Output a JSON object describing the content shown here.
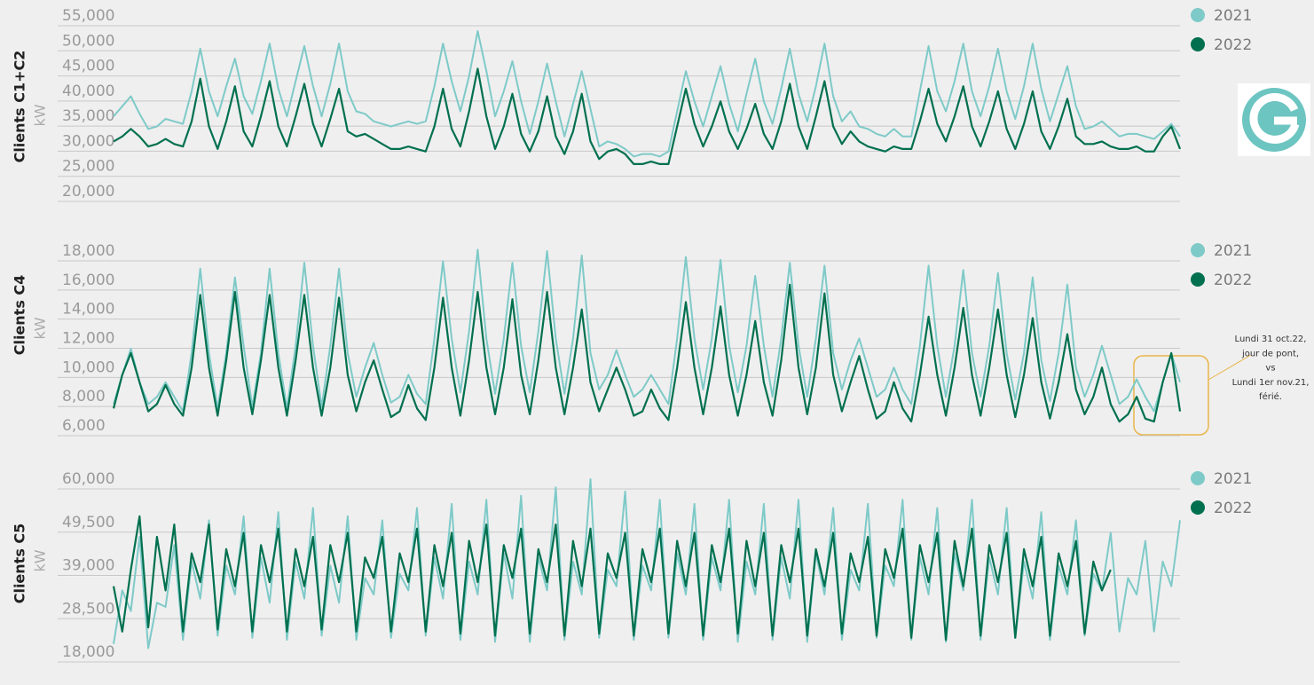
{
  "chart_data": [
    {
      "type": "line",
      "y_label": "Clients C1+C2",
      "unit_label": "kW",
      "grid": true,
      "legend": "right",
      "ylim": [
        20000,
        55000
      ],
      "yticks": [
        {
          "value": 20000,
          "label": "20,000"
        },
        {
          "value": 25000,
          "label": "25,000"
        },
        {
          "value": 30000,
          "label": "30,000"
        },
        {
          "value": 35000,
          "label": "35,000"
        },
        {
          "value": 40000,
          "label": "40,000"
        },
        {
          "value": 45000,
          "label": "45,000"
        },
        {
          "value": 50000,
          "label": "50,000"
        },
        {
          "value": 55000,
          "label": "55,000"
        }
      ],
      "series": [
        {
          "name": "2021",
          "color": "#7ecac8",
          "values": [
            35000,
            37000,
            39000,
            35500,
            32500,
            33000,
            34500,
            34000,
            33500,
            40000,
            48500,
            40000,
            35000,
            41000,
            46500,
            39000,
            35500,
            42000,
            49500,
            40500,
            35000,
            42000,
            49000,
            41000,
            35000,
            41500,
            49500,
            40000,
            36000,
            35500,
            34000,
            33500,
            33000,
            33500,
            34000,
            33500,
            34000,
            41000,
            49500,
            42000,
            36000,
            43000,
            52000,
            44000,
            35000,
            40000,
            46000,
            38000,
            31500,
            38000,
            45500,
            38000,
            31000,
            37500,
            44000,
            36500,
            29000,
            30000,
            29500,
            28500,
            27000,
            27500,
            27500,
            27000,
            28000,
            36000,
            44000,
            38000,
            33000,
            39000,
            45000,
            37500,
            32000,
            39500,
            46500,
            38000,
            33500,
            40500,
            48500,
            39500,
            34000,
            41000,
            49500,
            39000,
            34000,
            36000,
            33000,
            32500,
            31500,
            31000,
            32500,
            31000,
            31000,
            40000,
            49000,
            40000,
            36000,
            42000,
            49500,
            40000,
            35000,
            41000,
            48500,
            40000,
            34500,
            41000,
            49500,
            40500,
            34000,
            39500,
            45000,
            37000,
            32500,
            33000,
            34000,
            32500,
            31000,
            31500,
            31500,
            31000,
            30500,
            32000,
            33500,
            31000
          ]
        },
        {
          "name": "2022",
          "color": "#00704f",
          "values": [
            30000,
            31000,
            32500,
            31000,
            29000,
            29500,
            30500,
            29500,
            29000,
            34000,
            42500,
            33000,
            28500,
            34000,
            41000,
            32000,
            29000,
            35000,
            42000,
            33000,
            29000,
            35000,
            41500,
            33500,
            29000,
            34500,
            40500,
            32000,
            31000,
            31500,
            30500,
            29500,
            28500,
            28500,
            29000,
            28500,
            28000,
            33000,
            40500,
            32500,
            29000,
            36000,
            44500,
            35000,
            28500,
            33000,
            39500,
            31500,
            28000,
            32000,
            39000,
            31000,
            27500,
            32000,
            39500,
            30000,
            26500,
            28000,
            28500,
            27500,
            25500,
            25500,
            26000,
            25500,
            25500,
            33000,
            40500,
            33500,
            29000,
            33000,
            38000,
            32000,
            28500,
            32500,
            37500,
            31500,
            28500,
            34000,
            41500,
            33000,
            28500,
            35000,
            42000,
            33000,
            29500,
            32000,
            30000,
            29000,
            28500,
            28000,
            29000,
            28500,
            28500,
            34000,
            40500,
            33500,
            30000,
            35000,
            41000,
            33000,
            29000,
            34000,
            40000,
            32500,
            28500,
            33500,
            40000,
            32000,
            28500,
            33000,
            38500,
            31000,
            29500,
            29500,
            30000,
            29000,
            28500,
            28500,
            29000,
            28000,
            28000,
            31000,
            33000,
            28500
          ]
        }
      ]
    },
    {
      "type": "line",
      "y_label": "Clients C4",
      "unit_label": "kW",
      "grid": true,
      "legend": "right",
      "ylim": [
        6000,
        18000
      ],
      "yticks": [
        {
          "value": 6000,
          "label": "6,000"
        },
        {
          "value": 8000,
          "label": "8,000"
        },
        {
          "value": 10000,
          "label": "10,000"
        },
        {
          "value": 12000,
          "label": "12,000"
        },
        {
          "value": 14000,
          "label": "14,000"
        },
        {
          "value": 16000,
          "label": "16,000"
        },
        {
          "value": 18000,
          "label": "18,000"
        }
      ],
      "annotation": [
        "Lundi 31 oct.22,",
        "jour de pont,",
        "vs",
        "Lundi 1er nov.21,",
        "férié."
      ],
      "series": [
        {
          "name": "2021",
          "color": "#7ecac8",
          "values": [
            7500,
            9500,
            11300,
            9000,
            7500,
            8000,
            9000,
            8000,
            7000,
            11000,
            16800,
            11000,
            7200,
            11000,
            16200,
            11500,
            7300,
            11000,
            16800,
            11000,
            7200,
            11500,
            17200,
            11500,
            7300,
            11500,
            16800,
            11000,
            8000,
            10000,
            11700,
            9500,
            7600,
            8000,
            9500,
            8200,
            7500,
            12000,
            17300,
            12000,
            8300,
            12500,
            18100,
            12000,
            8200,
            12000,
            17200,
            11500,
            8300,
            12500,
            18000,
            12000,
            8200,
            12000,
            17700,
            11000,
            8500,
            9500,
            11200,
            9500,
            8000,
            8500,
            9500,
            8500,
            7500,
            12000,
            17600,
            12000,
            8500,
            12000,
            17400,
            11500,
            8300,
            11500,
            16300,
            11500,
            8000,
            12000,
            17200,
            11500,
            8000,
            12000,
            17000,
            11000,
            8500,
            10500,
            12000,
            10000,
            8000,
            8500,
            10000,
            8500,
            7500,
            11500,
            17000,
            11500,
            8000,
            11500,
            16700,
            11000,
            8000,
            11500,
            16500,
            11000,
            7800,
            11000,
            16200,
            10500,
            7700,
            11000,
            15700,
            10000,
            8000,
            9500,
            11500,
            9500,
            7500,
            8000,
            9200,
            8000,
            7000,
            9000,
            11000,
            9000
          ]
        },
        {
          "name": "2022",
          "color": "#00704f",
          "values": [
            7200,
            9500,
            11000,
            9000,
            7000,
            7500,
            8800,
            7500,
            6700,
            10000,
            15000,
            10000,
            6700,
            10500,
            15200,
            10000,
            6800,
            10500,
            15000,
            10000,
            6700,
            10500,
            15000,
            10000,
            6700,
            10000,
            14800,
            9500,
            7000,
            9000,
            10500,
            8500,
            6600,
            7000,
            8800,
            7200,
            6400,
            10000,
            14800,
            10000,
            6700,
            10500,
            15200,
            10000,
            6800,
            10000,
            14700,
            9500,
            6800,
            10500,
            15200,
            10000,
            6800,
            10000,
            14000,
            9000,
            7000,
            8500,
            10000,
            8500,
            6700,
            7000,
            8500,
            7200,
            6400,
            10000,
            14500,
            10000,
            6800,
            10000,
            14200,
            9500,
            6700,
            9500,
            13200,
            9000,
            6700,
            10500,
            15700,
            10000,
            6800,
            10000,
            15100,
            9500,
            7000,
            9000,
            10800,
            8500,
            6500,
            7000,
            9000,
            7200,
            6300,
            9500,
            13500,
            9500,
            6700,
            10000,
            14100,
            9500,
            6700,
            10000,
            14000,
            9500,
            6600,
            9500,
            13400,
            9000,
            6500,
            9000,
            12300,
            8500,
            6800,
            8000,
            10000,
            7500,
            6300,
            6800,
            8000,
            6500,
            6300,
            9000,
            11000,
            7000
          ]
        }
      ]
    },
    {
      "type": "line",
      "y_label": "Clients C5",
      "unit_label": "kW",
      "grid": true,
      "legend": "right",
      "ylim": [
        18000,
        60000
      ],
      "yticks": [
        {
          "value": 18000,
          "label": "18,000"
        },
        {
          "value": 28500,
          "label": "28,500"
        },
        {
          "value": 39000,
          "label": "39,000"
        },
        {
          "value": 49500,
          "label": "49,500"
        },
        {
          "value": 60000,
          "label": "60,000"
        }
      ],
      "series": [
        {
          "name": "2021",
          "color": "#7ecac8",
          "values": [
            20000,
            33000,
            28000,
            46000,
            19000,
            30000,
            29000,
            44000,
            21000,
            40000,
            31000,
            50000,
            22000,
            39000,
            32000,
            51000,
            21500,
            41000,
            30000,
            52000,
            21000,
            40000,
            31000,
            53000,
            22000,
            39000,
            30000,
            51000,
            21000,
            36000,
            32000,
            50000,
            21500,
            37000,
            33000,
            53000,
            22000,
            41000,
            31000,
            54000,
            21000,
            40000,
            32000,
            55000,
            20500,
            42000,
            31000,
            56000,
            20500,
            41000,
            33000,
            58000,
            21000,
            40000,
            32000,
            60000,
            21500,
            38000,
            34000,
            57000,
            21000,
            39000,
            33000,
            55000,
            21500,
            42000,
            32000,
            54000,
            21000,
            41000,
            33000,
            55000,
            20500,
            40000,
            32000,
            54000,
            21000,
            41000,
            31000,
            55000,
            20500,
            42000,
            32000,
            53000,
            21000,
            38000,
            33000,
            54000,
            21500,
            39000,
            34000,
            55000,
            21000,
            41000,
            32000,
            53000,
            20500,
            42000,
            33000,
            55000,
            21000,
            41000,
            32000,
            53000,
            21500,
            40000,
            31000,
            52000,
            21000,
            39000,
            32000,
            50000,
            22000,
            37000,
            33000,
            47000,
            23000,
            36000,
            32000,
            45000,
            23000,
            40000,
            34000,
            50000
          ]
        },
        {
          "name": "2022",
          "color": "#00704f",
          "values": [
            34000,
            23000,
            38000,
            51000,
            24000,
            46000,
            33000,
            49000,
            23000,
            42000,
            35000,
            49000,
            23500,
            43000,
            34000,
            47000,
            23000,
            44000,
            35000,
            48000,
            23000,
            43000,
            34000,
            46000,
            23500,
            44000,
            35000,
            47000,
            23000,
            41000,
            36000,
            46000,
            23000,
            42000,
            35000,
            48000,
            23000,
            44000,
            34000,
            47000,
            22500,
            45000,
            35000,
            49000,
            22000,
            44000,
            36000,
            48000,
            22500,
            43000,
            35000,
            49000,
            22000,
            45000,
            34000,
            48000,
            22500,
            42000,
            36000,
            47000,
            22000,
            43000,
            35000,
            48000,
            22500,
            45000,
            34000,
            47000,
            22000,
            44000,
            35000,
            48000,
            22500,
            45000,
            34000,
            47000,
            22000,
            44000,
            35000,
            48000,
            22000,
            43000,
            34000,
            47000,
            22500,
            42000,
            35000,
            46000,
            22000,
            43000,
            36000,
            48000,
            21500,
            44000,
            35000,
            47000,
            21000,
            45000,
            34000,
            48000,
            22000,
            44000,
            35000,
            47000,
            21500,
            43000,
            34000,
            46000,
            22000,
            42000,
            34000,
            45000,
            22500,
            40000,
            33000,
            38000,
            null,
            null,
            null,
            null,
            null,
            null,
            null,
            null
          ]
        }
      ]
    }
  ]
}
